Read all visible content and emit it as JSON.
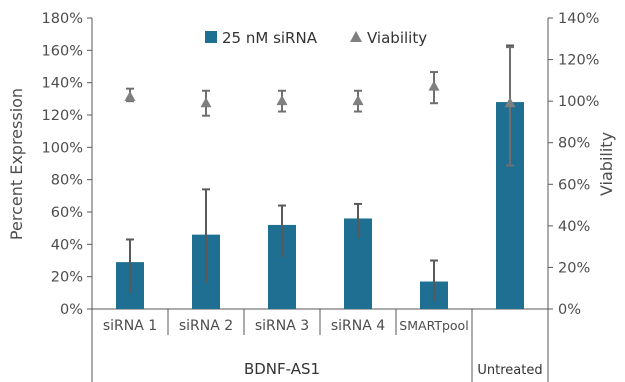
{
  "chart_data": {
    "type": "bar",
    "categories": [
      "siRNA 1",
      "siRNA 2",
      "siRNA 3",
      "siRNA 4",
      "SMARTpool",
      "Untreated"
    ],
    "groups": [
      {
        "label": "BDNF-AS1",
        "categories": [
          "siRNA 1",
          "siRNA 2",
          "siRNA 3",
          "siRNA 4",
          "SMARTpool"
        ]
      },
      {
        "label": "Untreated",
        "categories": [
          "Untreated"
        ]
      }
    ],
    "series": [
      {
        "name": "25 nM siRNA",
        "type": "bar",
        "axis": "left",
        "color": "#1f6f93",
        "values": [
          29,
          46,
          52,
          56,
          17,
          128
        ],
        "error_low": [
          10,
          16,
          32,
          44,
          5,
          90
        ],
        "error_high": [
          43,
          74,
          64,
          65,
          30,
          163
        ]
      },
      {
        "name": "Viability",
        "type": "scatter",
        "marker": "triangle",
        "axis": "right",
        "color": "#7f7f7f",
        "values": [
          102,
          99,
          100,
          100,
          107,
          99
        ],
        "error_low": [
          100,
          93,
          95,
          95,
          99,
          69
        ],
        "error_high": [
          106,
          105,
          105,
          105,
          114,
          126
        ]
      }
    ],
    "ylabel": "Percent Expression",
    "ylim": [
      0,
      180
    ],
    "yticks": [
      "0%",
      "20%",
      "40%",
      "60%",
      "80%",
      "100%",
      "120%",
      "140%",
      "160%",
      "180%"
    ],
    "y2label": "Viability",
    "y2lim": [
      0,
      140
    ],
    "y2ticks": [
      "0%",
      "20%",
      "40%",
      "60%",
      "80%",
      "100%",
      "120%",
      "140%"
    ],
    "legend_position": "top-center",
    "grid": false
  }
}
